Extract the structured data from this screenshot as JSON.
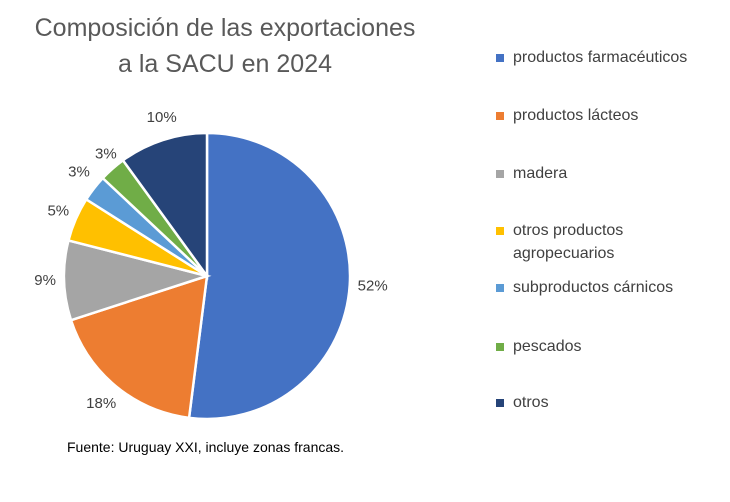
{
  "chart_data": {
    "type": "pie",
    "title_lines": [
      "Composición de las exportaciones",
      "a la SACU en 2024"
    ],
    "slices": [
      {
        "name": "productos farmacéuticos",
        "value": 52,
        "label": "52%",
        "color": "#4472C4"
      },
      {
        "name": "productos lácteos",
        "value": 18,
        "label": "18%",
        "color": "#ED7D31"
      },
      {
        "name": "madera",
        "value": 9,
        "label": "9%",
        "color": "#A5A5A5"
      },
      {
        "name": "otros productos agropecuarios",
        "value": 5,
        "label": "5%",
        "color": "#FFC000"
      },
      {
        "name": "subproductos cárnicos",
        "value": 3,
        "label": "3%",
        "color": "#5B9BD5"
      },
      {
        "name": "pescados",
        "value": 3,
        "label": "3%",
        "color": "#70AD47"
      },
      {
        "name": "otros",
        "value": 10,
        "label": "10%",
        "color": "#264478"
      }
    ],
    "legend_position": "right",
    "source": "Fuente: Uruguay XXI, incluye zonas francas."
  }
}
